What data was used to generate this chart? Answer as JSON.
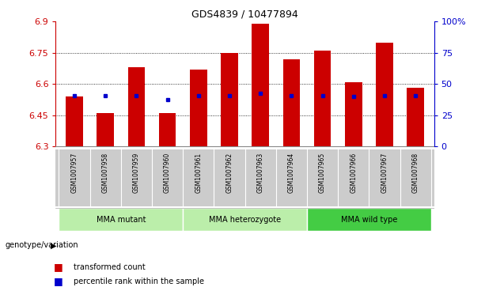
{
  "title": "GDS4839 / 10477894",
  "samples": [
    "GSM1007957",
    "GSM1007958",
    "GSM1007959",
    "GSM1007960",
    "GSM1007961",
    "GSM1007962",
    "GSM1007963",
    "GSM1007964",
    "GSM1007965",
    "GSM1007966",
    "GSM1007967",
    "GSM1007968"
  ],
  "red_values": [
    6.54,
    6.46,
    6.68,
    6.46,
    6.67,
    6.75,
    6.89,
    6.72,
    6.76,
    6.61,
    6.8,
    6.58
  ],
  "blue_values": [
    6.545,
    6.545,
    6.545,
    6.525,
    6.545,
    6.545,
    6.555,
    6.545,
    6.545,
    6.54,
    6.545,
    6.545
  ],
  "ymin": 6.3,
  "ymax": 6.9,
  "yticks": [
    6.3,
    6.45,
    6.6,
    6.75,
    6.9
  ],
  "ytick_labels": [
    "6.3",
    "6.45",
    "6.6",
    "6.75",
    "6.9"
  ],
  "right_yticks": [
    0,
    25,
    50,
    75,
    100
  ],
  "right_ytick_labels": [
    "0",
    "25",
    "50",
    "75",
    "100%"
  ],
  "red_color": "#cc0000",
  "blue_color": "#0000cc",
  "bar_width": 0.55,
  "bg_color": "#ffffff",
  "xlabel_color": "#cc0000",
  "ylabel_right_color": "#0000cc",
  "group_defs": [
    {
      "label": "MMA mutant",
      "start": 0,
      "end": 3,
      "color": "#bbeeaa"
    },
    {
      "label": "MMA heterozygote",
      "start": 4,
      "end": 7,
      "color": "#bbeeaa"
    },
    {
      "label": "MMA wild type",
      "start": 8,
      "end": 11,
      "color": "#44cc44"
    }
  ],
  "xticklabel_bg": "#cccccc",
  "genotype_label": "genotype/variation",
  "legend_red": "transformed count",
  "legend_blue": "percentile rank within the sample",
  "grid_lines": [
    6.45,
    6.6,
    6.75
  ]
}
